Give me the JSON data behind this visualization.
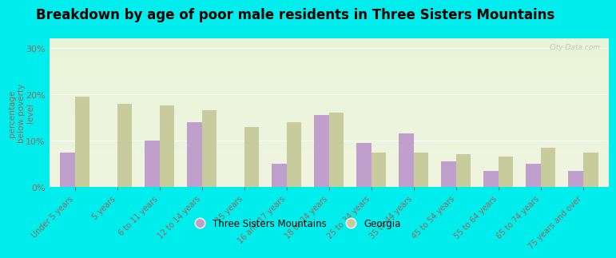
{
  "title": "Breakdown by age of poor male residents in Three Sisters Mountains",
  "categories": [
    "Under 5 years",
    "5 years",
    "6 to 11 years",
    "12 to 14 years",
    "15 years",
    "16 and 17 years",
    "18 to 24 years",
    "25 to 34 years",
    "35 to 44 years",
    "45 to 54 years",
    "55 to 64 years",
    "65 to 74 years",
    "75 years and over"
  ],
  "tsm_values": [
    7.5,
    0.0,
    10.0,
    14.0,
    0.0,
    5.0,
    15.5,
    9.5,
    11.5,
    5.5,
    3.5,
    5.0,
    3.5
  ],
  "ga_values": [
    19.5,
    18.0,
    17.5,
    16.5,
    13.0,
    14.0,
    16.0,
    7.5,
    7.5,
    7.0,
    6.5,
    8.5,
    7.5
  ],
  "tsm_color": "#bf9fcc",
  "ga_color": "#c8cc9d",
  "outer_bg": "#00eded",
  "plot_bg_top": "#e8f0d8",
  "plot_bg_bottom": "#f0f5e0",
  "ylabel": "percentage\nbelow poverty\nlevel",
  "ytick_labels": [
    "0%",
    "10%",
    "20%",
    "30%"
  ],
  "ytick_values": [
    0,
    10,
    20,
    30
  ],
  "ylim": [
    0,
    32
  ],
  "bar_width": 0.35,
  "legend_tsm": "Three Sisters Mountains",
  "legend_ga": "Georgia",
  "title_fontsize": 12,
  "tick_color": "#996655",
  "grid_color": "#e0e8c8",
  "watermark": "City-Data.com"
}
